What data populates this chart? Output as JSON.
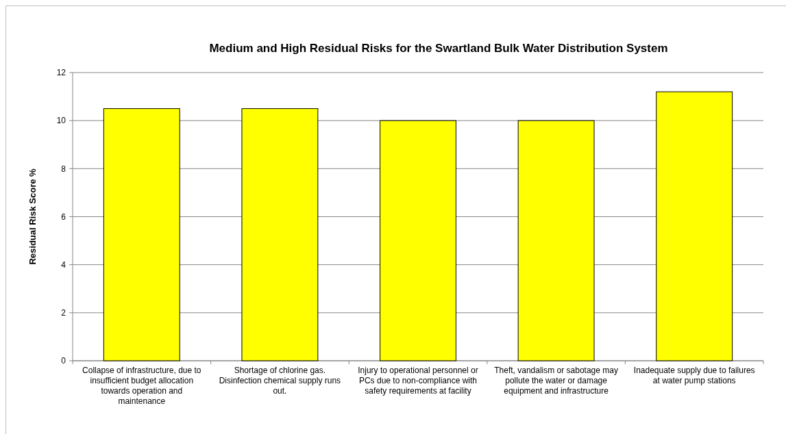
{
  "chart_data": {
    "type": "bar",
    "title": "Medium and High Residual Risks for the Swartland Bulk Water Distribution System",
    "ylabel": "Residual Risk Score %",
    "categories": [
      "Collapse of infrastructure, due to insufficient budget allocation towards operation and maintenance",
      "Shortage of chlorine gas. Disinfection chemical supply runs out.",
      "Injury to operational personnel or PCs due to non-compliance with safety requirements at facility",
      "Theft, vandalism or sabotage may pollute the water or damage equipment and infrastructure",
      "Inadequate supply due to failures at water pump stations"
    ],
    "values": [
      10.5,
      10.5,
      10,
      10,
      11.2
    ],
    "color": "#ffff00",
    "ylim": [
      0,
      12
    ],
    "yticks": [
      0,
      2,
      4,
      6,
      8,
      10,
      12
    ],
    "grid": "y"
  }
}
